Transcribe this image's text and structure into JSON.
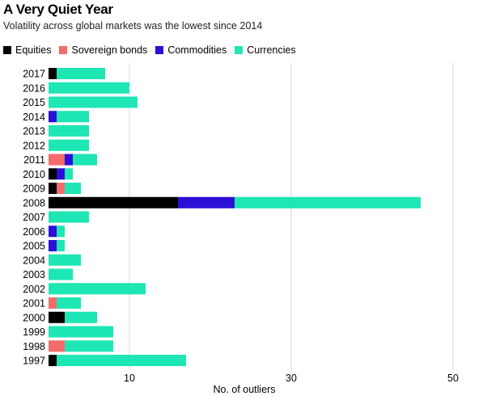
{
  "title": "A Very Quiet Year",
  "subtitle": "Volatility across global markets was the lowest since 2014",
  "legend": [
    {
      "label": "Equities",
      "color": "#000000"
    },
    {
      "label": "Sovereign bonds",
      "color": "#f46b6b"
    },
    {
      "label": "Commodities",
      "color": "#2b0fd6"
    },
    {
      "label": "Currencies",
      "color": "#1ee6b4"
    }
  ],
  "chart_data": {
    "type": "bar",
    "orientation": "horizontal",
    "stacked": true,
    "xlabel": "No. of outliers",
    "xlim": [
      0,
      50
    ],
    "xticks": [
      10,
      30,
      50
    ],
    "grid": true,
    "legend_position": "top-left",
    "categories": [
      "2017",
      "2016",
      "2015",
      "2014",
      "2013",
      "2012",
      "2011",
      "2010",
      "2009",
      "2008",
      "2007",
      "2006",
      "2005",
      "2004",
      "2003",
      "2002",
      "2001",
      "2000",
      "1999",
      "1998",
      "1997"
    ],
    "series": [
      {
        "name": "Equities",
        "color": "#000000",
        "values": [
          1,
          0,
          0,
          0,
          0,
          0,
          0,
          1,
          1,
          16,
          0,
          0,
          0,
          0,
          0,
          0,
          0,
          2,
          0,
          0,
          1
        ]
      },
      {
        "name": "Sovereign bonds",
        "color": "#f46b6b",
        "values": [
          0,
          0,
          0,
          0,
          0,
          0,
          2,
          0,
          1,
          0,
          0,
          0,
          0,
          0,
          0,
          0,
          1,
          0,
          0,
          2,
          0
        ]
      },
      {
        "name": "Commodities",
        "color": "#2b0fd6",
        "values": [
          0,
          0,
          0,
          1,
          0,
          0,
          1,
          1,
          0,
          7,
          0,
          1,
          1,
          0,
          0,
          0,
          0,
          0,
          0,
          0,
          0
        ]
      },
      {
        "name": "Currencies",
        "color": "#1ee6b4",
        "values": [
          6,
          10,
          11,
          4,
          5,
          5,
          3,
          1,
          2,
          23,
          5,
          1,
          1,
          4,
          3,
          12,
          3,
          4,
          8,
          6,
          16
        ]
      }
    ]
  }
}
